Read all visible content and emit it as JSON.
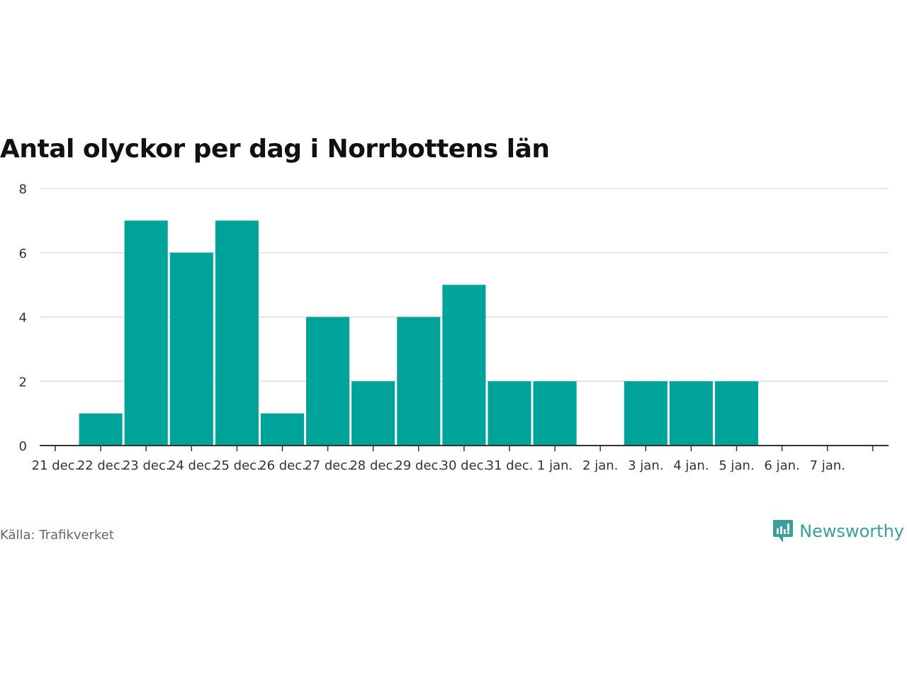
{
  "chart_data": {
    "type": "bar",
    "title": "Antal olyckor per dag i Norrbottens län",
    "xlabel": "",
    "ylabel": "",
    "ylim": [
      0,
      8
    ],
    "yticks": [
      0,
      2,
      4,
      6,
      8
    ],
    "grid": true,
    "tick_labels": [
      "21 dec.",
      "22 dec.",
      "23 dec.",
      "24 dec.",
      "25 dec.",
      "26 dec.",
      "27 dec.",
      "28 dec.",
      "29 dec.",
      "30 dec.",
      "31 dec.",
      "1 jan.",
      "2 jan.",
      "3 jan.",
      "4 jan.",
      "5 jan.",
      "6 jan.",
      "7 jan."
    ],
    "categories": [
      "22 dec.",
      "23 dec.",
      "24 dec.",
      "25 dec.",
      "26 dec.",
      "27 dec.",
      "28 dec.",
      "29 dec.",
      "30 dec.",
      "31 dec.",
      "1 jan.",
      "2 jan.",
      "3 jan.",
      "4 jan.",
      "5 jan."
    ],
    "values": [
      1,
      7,
      6,
      7,
      1,
      4,
      2,
      4,
      5,
      2,
      2,
      0,
      2,
      2,
      2
    ],
    "bar_color": "#00a39a"
  },
  "footer": {
    "source": "Källa: Trafikverket",
    "brand": "Newsworthy",
    "brand_icon": "newsworthy-logo-icon"
  }
}
